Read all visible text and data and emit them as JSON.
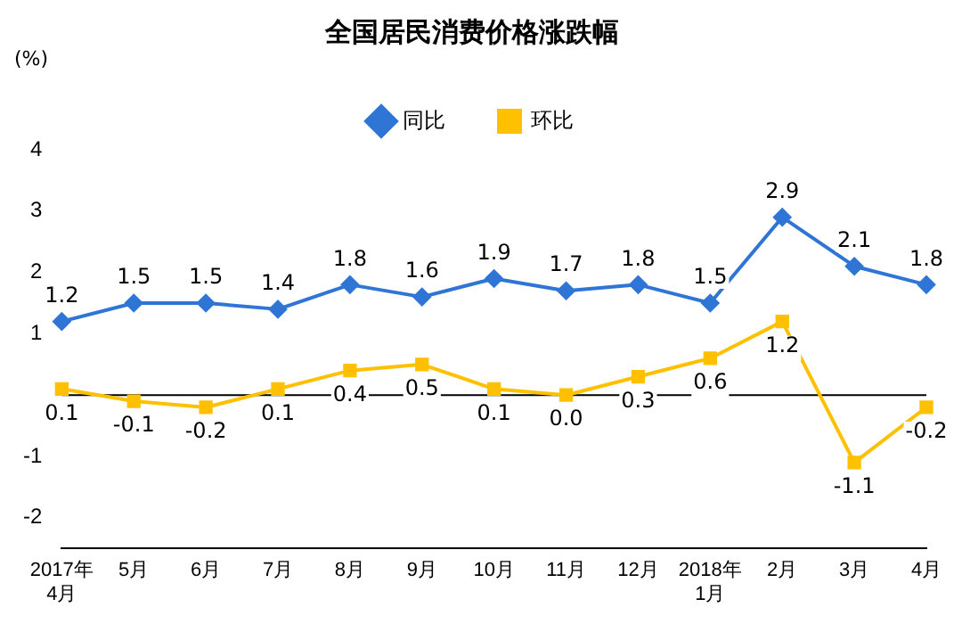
{
  "chart_data": {
    "type": "line",
    "title": "全国居民消费价格涨跌幅",
    "ylabel": "(%)",
    "categories": [
      "2017年\n4月",
      "5月",
      "6月",
      "7月",
      "8月",
      "9月",
      "10月",
      "11月",
      "12月",
      "2018年\n1月",
      "2月",
      "3月",
      "4月"
    ],
    "ylim": [
      -2.5,
      4
    ],
    "yticks": [
      4,
      3,
      2,
      1,
      -1,
      -2
    ],
    "grid": false,
    "legend": "top",
    "series": [
      {
        "name": "同比",
        "color": "#2e75d6",
        "marker": "diamond",
        "values": [
          1.2,
          1.5,
          1.5,
          1.4,
          1.8,
          1.6,
          1.9,
          1.7,
          1.8,
          1.5,
          2.9,
          2.1,
          1.8
        ],
        "value_labels": [
          "1.2",
          "1.5",
          "1.5",
          "1.4",
          "1.8",
          "1.6",
          "1.9",
          "1.7",
          "1.8",
          "1.5",
          "2.9",
          "2.1",
          "1.8"
        ]
      },
      {
        "name": "环比",
        "color": "#ffc000",
        "marker": "square",
        "values": [
          0.1,
          -0.1,
          -0.2,
          0.1,
          0.4,
          0.5,
          0.1,
          0.0,
          0.3,
          0.6,
          1.2,
          -1.1,
          -0.2
        ],
        "value_labels": [
          "0.1",
          "-0.1",
          "-0.2",
          "0.1",
          "0.4",
          "0.5",
          "0.1",
          "0.0",
          "0.3",
          "0.6",
          "1.2",
          "-1.1",
          "-0.2"
        ]
      }
    ]
  }
}
